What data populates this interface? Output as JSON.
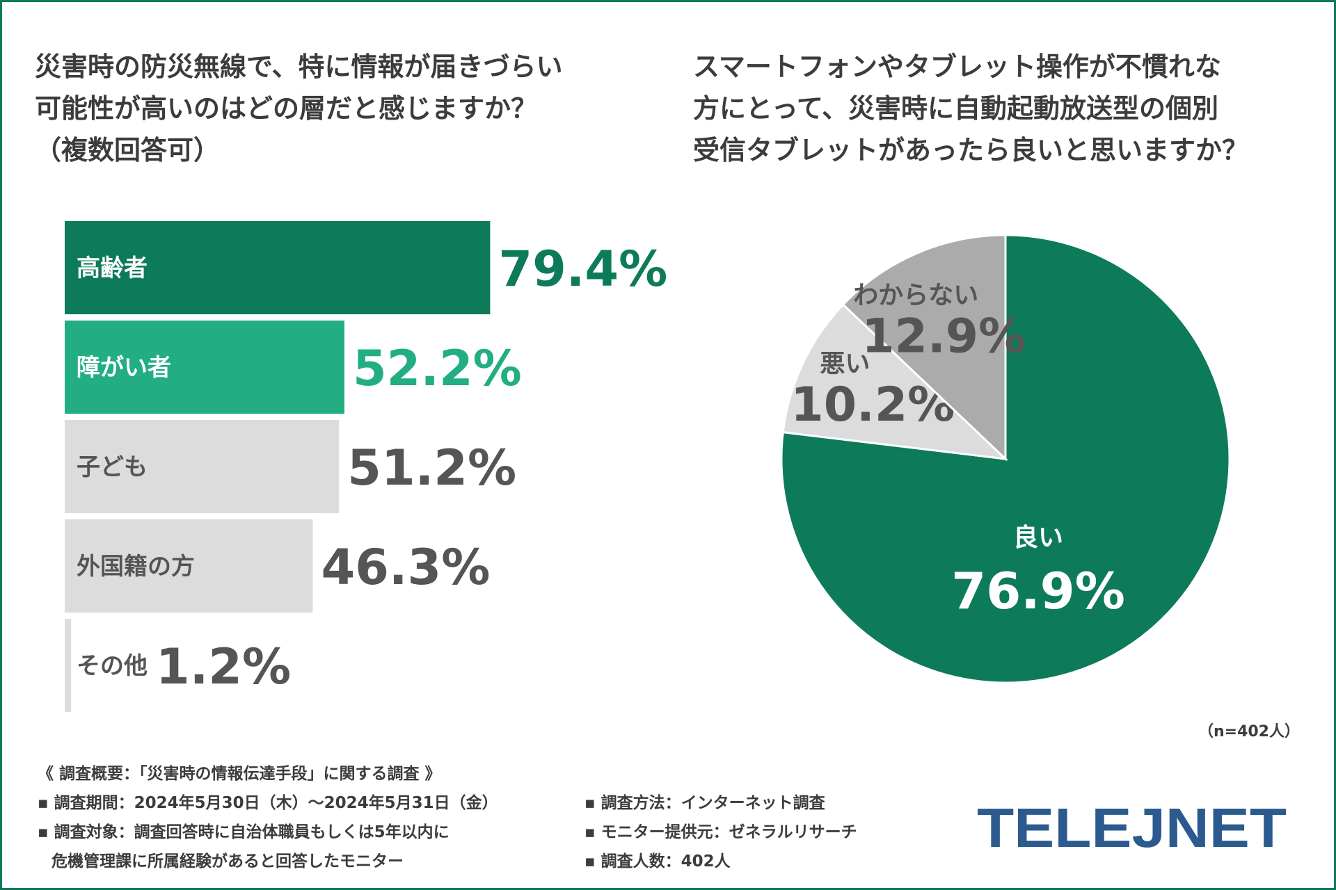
{
  "left_question": {
    "text": "災害時の防災無線で、特に情報が届きづらい\n可能性が高いのはどの層だと感じますか？\n（複数回答可）"
  },
  "right_question": {
    "text": "スマートフォンやタブレット操作が不慣れな\n方にとって、災害時に自動起動放送型の個別\n受信タブレットがあったら良いと思いますか？"
  },
  "chart_data": [
    {
      "type": "bar",
      "orientation": "horizontal",
      "categories": [
        "高齢者",
        "障がい者",
        "子ども",
        "外国籍の方",
        "その他"
      ],
      "values": [
        79.4,
        52.2,
        51.2,
        46.3,
        1.2
      ],
      "value_labels": [
        "79.4%",
        "52.2%",
        "51.2%",
        "46.3%",
        "1.2%"
      ],
      "colors": [
        "#0d7b5a",
        "#22ae82",
        "#dcdcdc",
        "#dcdcdc",
        "#dcdcdc"
      ],
      "label_colors": [
        "#ffffff",
        "#ffffff",
        "#555555",
        "#555555",
        "#555555"
      ],
      "value_colors": [
        "#0d7b5a",
        "#22ae82",
        "#555555",
        "#555555",
        "#555555"
      ],
      "xlim": [
        0,
        100
      ]
    },
    {
      "type": "pie",
      "categories": [
        "良い",
        "悪い",
        "わからない"
      ],
      "values": [
        76.9,
        10.2,
        12.9
      ],
      "value_labels": [
        "76.9%",
        "10.2%",
        "12.9%"
      ],
      "colors": [
        "#0d7b5a",
        "#dcdcdc",
        "#ababab"
      ],
      "label_colors": [
        "#ffffff",
        "#555555",
        "#555555"
      ],
      "start": "12 o'clock",
      "direction": "clockwise",
      "sample_note": "（n=402人）"
    }
  ],
  "survey": {
    "title": "《 調査概要：「災害時の情報伝達手段」に関する調査 》",
    "left_items": [
      "▪ 調査期間：2024年5月30日（木）～2024年5月31日（金）",
      "▪ 調査対象：調査回答時に自治体職員もしくは5年以内に",
      "危機管理課に所属経験があると回答したモニター"
    ],
    "right_items": [
      "▪ 調査方法：インターネット調査",
      "▪ モニター提供元：ゼネラルリサーチ",
      "▪ 調査人数：402人"
    ]
  },
  "logo": {
    "text": "TELEJNET",
    "color": "#2b5a8f"
  }
}
